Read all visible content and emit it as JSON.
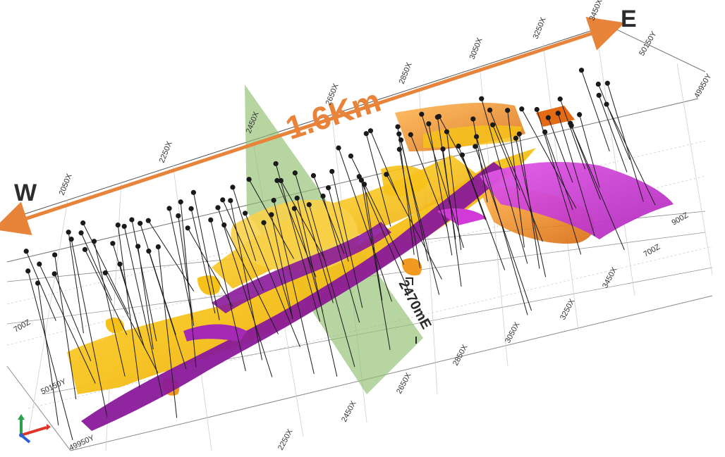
{
  "compass": {
    "west": "W",
    "east": "E"
  },
  "scale_label": "1.6Km",
  "section_label": "2470mE",
  "colors": {
    "scale_arrow": "#e8833a",
    "purple_lode": "#8a1a9a",
    "magenta_lode": "#d23ad8",
    "yellow_lode": "#f6c21a",
    "orange_lode": "#f29a1f",
    "section_plane": "#8fbf6f",
    "drillhole": "#1a1a1a"
  },
  "grid_labels": {
    "top_x": [
      "2050X",
      "2250X",
      "2450X",
      "2650X",
      "2850X",
      "3050X",
      "3250X",
      "3450X"
    ],
    "bottom_x": [
      "2250X",
      "2450X",
      "2650X",
      "2850X",
      "3050X",
      "3250X",
      "3450X"
    ],
    "y": [
      "49950Y",
      "50150Y"
    ],
    "right_y": [
      "50150Y",
      "49950Y"
    ],
    "z": [
      "700Z",
      "900Z",
      "700Z"
    ]
  },
  "axis_triad": {
    "x_color": "#e0342b",
    "y_color": "#2aa14a",
    "z_color": "#2a5fd6"
  }
}
